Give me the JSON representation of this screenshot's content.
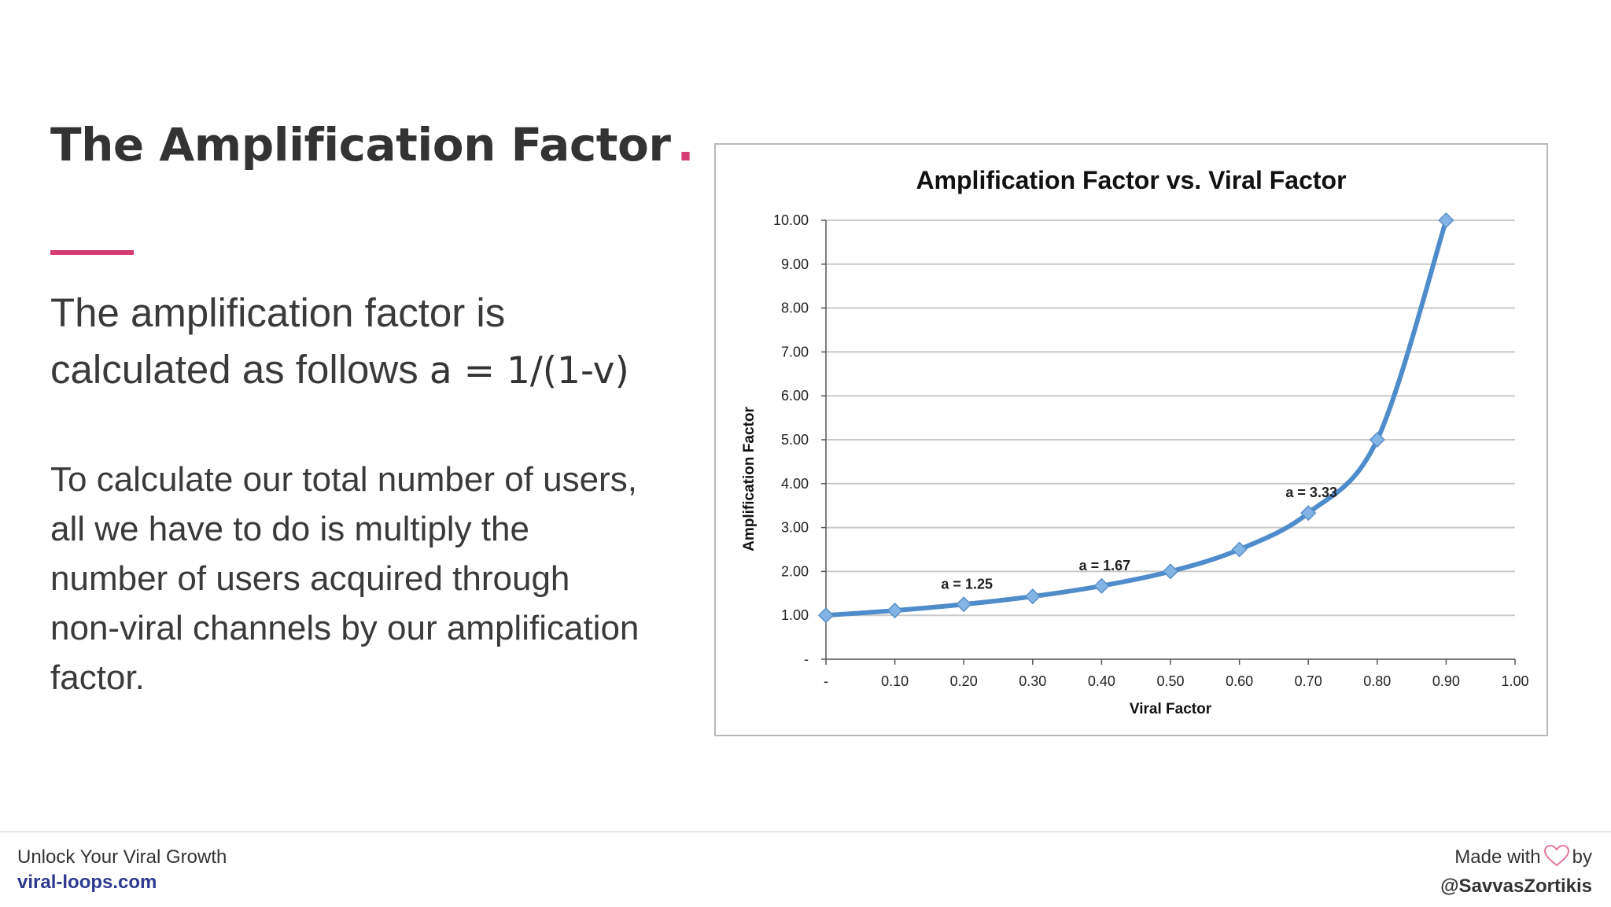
{
  "slide": {
    "title": "The Amplification Factor",
    "title_dot": ".",
    "paragraph1_text": "The amplification factor is calculated as follows ",
    "paragraph1_formula": "a = 1/(1-v)",
    "paragraph2": "To calculate our total number of users, all we have to do is multiply the number of users acquired through non-viral channels by our amplification factor."
  },
  "footer": {
    "tagline": "Unlock Your Viral Growth",
    "link": "viral-loops.com",
    "made_with": "Made with",
    "by": "by",
    "handle": "@SavvasZortikis",
    "heart_icon": "heart-icon"
  },
  "colors": {
    "accent": "#d63b72",
    "line": "#4f8ccb",
    "marker": "#84b4e6",
    "link": "#2e3a8f"
  },
  "chart_data": {
    "type": "line",
    "title": "Amplification Factor vs. Viral Factor",
    "xlabel": "Viral Factor",
    "ylabel": "Amplification Factor",
    "xlim": [
      0,
      1
    ],
    "ylim": [
      0,
      10
    ],
    "x_tick_labels": [
      "-",
      "0.10",
      "0.20",
      "0.30",
      "0.40",
      "0.50",
      "0.60",
      "0.70",
      "0.80",
      "0.90",
      "1.00"
    ],
    "y_tick_labels": [
      "-",
      "1.00",
      "2.00",
      "3.00",
      "4.00",
      "5.00",
      "6.00",
      "7.00",
      "8.00",
      "9.00",
      "10.00"
    ],
    "grid": true,
    "marker": "diamond",
    "series": [
      {
        "x": [
          0,
          0.1,
          0.2,
          0.3,
          0.4,
          0.5,
          0.6,
          0.7,
          0.8,
          0.9
        ],
        "values": [
          1.0,
          1.11,
          1.25,
          1.43,
          1.67,
          2.0,
          2.5,
          3.33,
          5.0,
          10.0
        ]
      }
    ],
    "annotations": [
      {
        "text": "a = 1.25",
        "x": 0.2,
        "y": 1.25
      },
      {
        "text": "a = 1.67",
        "x": 0.4,
        "y": 1.67
      },
      {
        "text": "a = 3.33",
        "x": 0.7,
        "y": 3.33
      }
    ]
  }
}
